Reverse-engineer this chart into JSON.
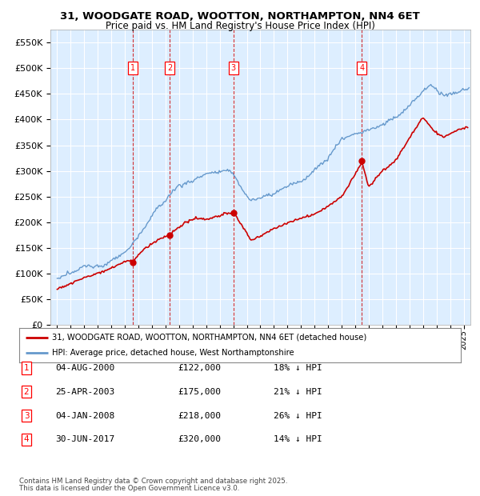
{
  "title": "31, WOODGATE ROAD, WOOTTON, NORTHAMPTON, NN4 6ET",
  "subtitle": "Price paid vs. HM Land Registry's House Price Index (HPI)",
  "legend_line1": "31, WOODGATE ROAD, WOOTTON, NORTHAMPTON, NN4 6ET (detached house)",
  "legend_line2": "HPI: Average price, detached house, West Northamptonshire",
  "footer1": "Contains HM Land Registry data © Crown copyright and database right 2025.",
  "footer2": "This data is licensed under the Open Government Licence v3.0.",
  "transactions": [
    {
      "num": 1,
      "date": "04-AUG-2000",
      "price": "£122,000",
      "pct": "18% ↓ HPI",
      "year": 2000.58,
      "price_val": 122000
    },
    {
      "num": 2,
      "date": "25-APR-2003",
      "price": "£175,000",
      "pct": "21% ↓ HPI",
      "year": 2003.31,
      "price_val": 175000
    },
    {
      "num": 3,
      "date": "04-JAN-2008",
      "price": "£218,000",
      "pct": "26% ↓ HPI",
      "year": 2008.01,
      "price_val": 218000
    },
    {
      "num": 4,
      "date": "30-JUN-2017",
      "price": "£320,000",
      "pct": "14% ↓ HPI",
      "year": 2017.49,
      "price_val": 320000
    }
  ],
  "red_line_color": "#cc0000",
  "blue_line_color": "#6699cc",
  "background_plot": "#ddeeff",
  "grid_color": "#ffffff",
  "ylim": [
    0,
    575000
  ],
  "yticks": [
    0,
    50000,
    100000,
    150000,
    200000,
    250000,
    300000,
    350000,
    400000,
    450000,
    500000,
    550000
  ],
  "xlim_start": 1994.5,
  "xlim_end": 2025.5
}
